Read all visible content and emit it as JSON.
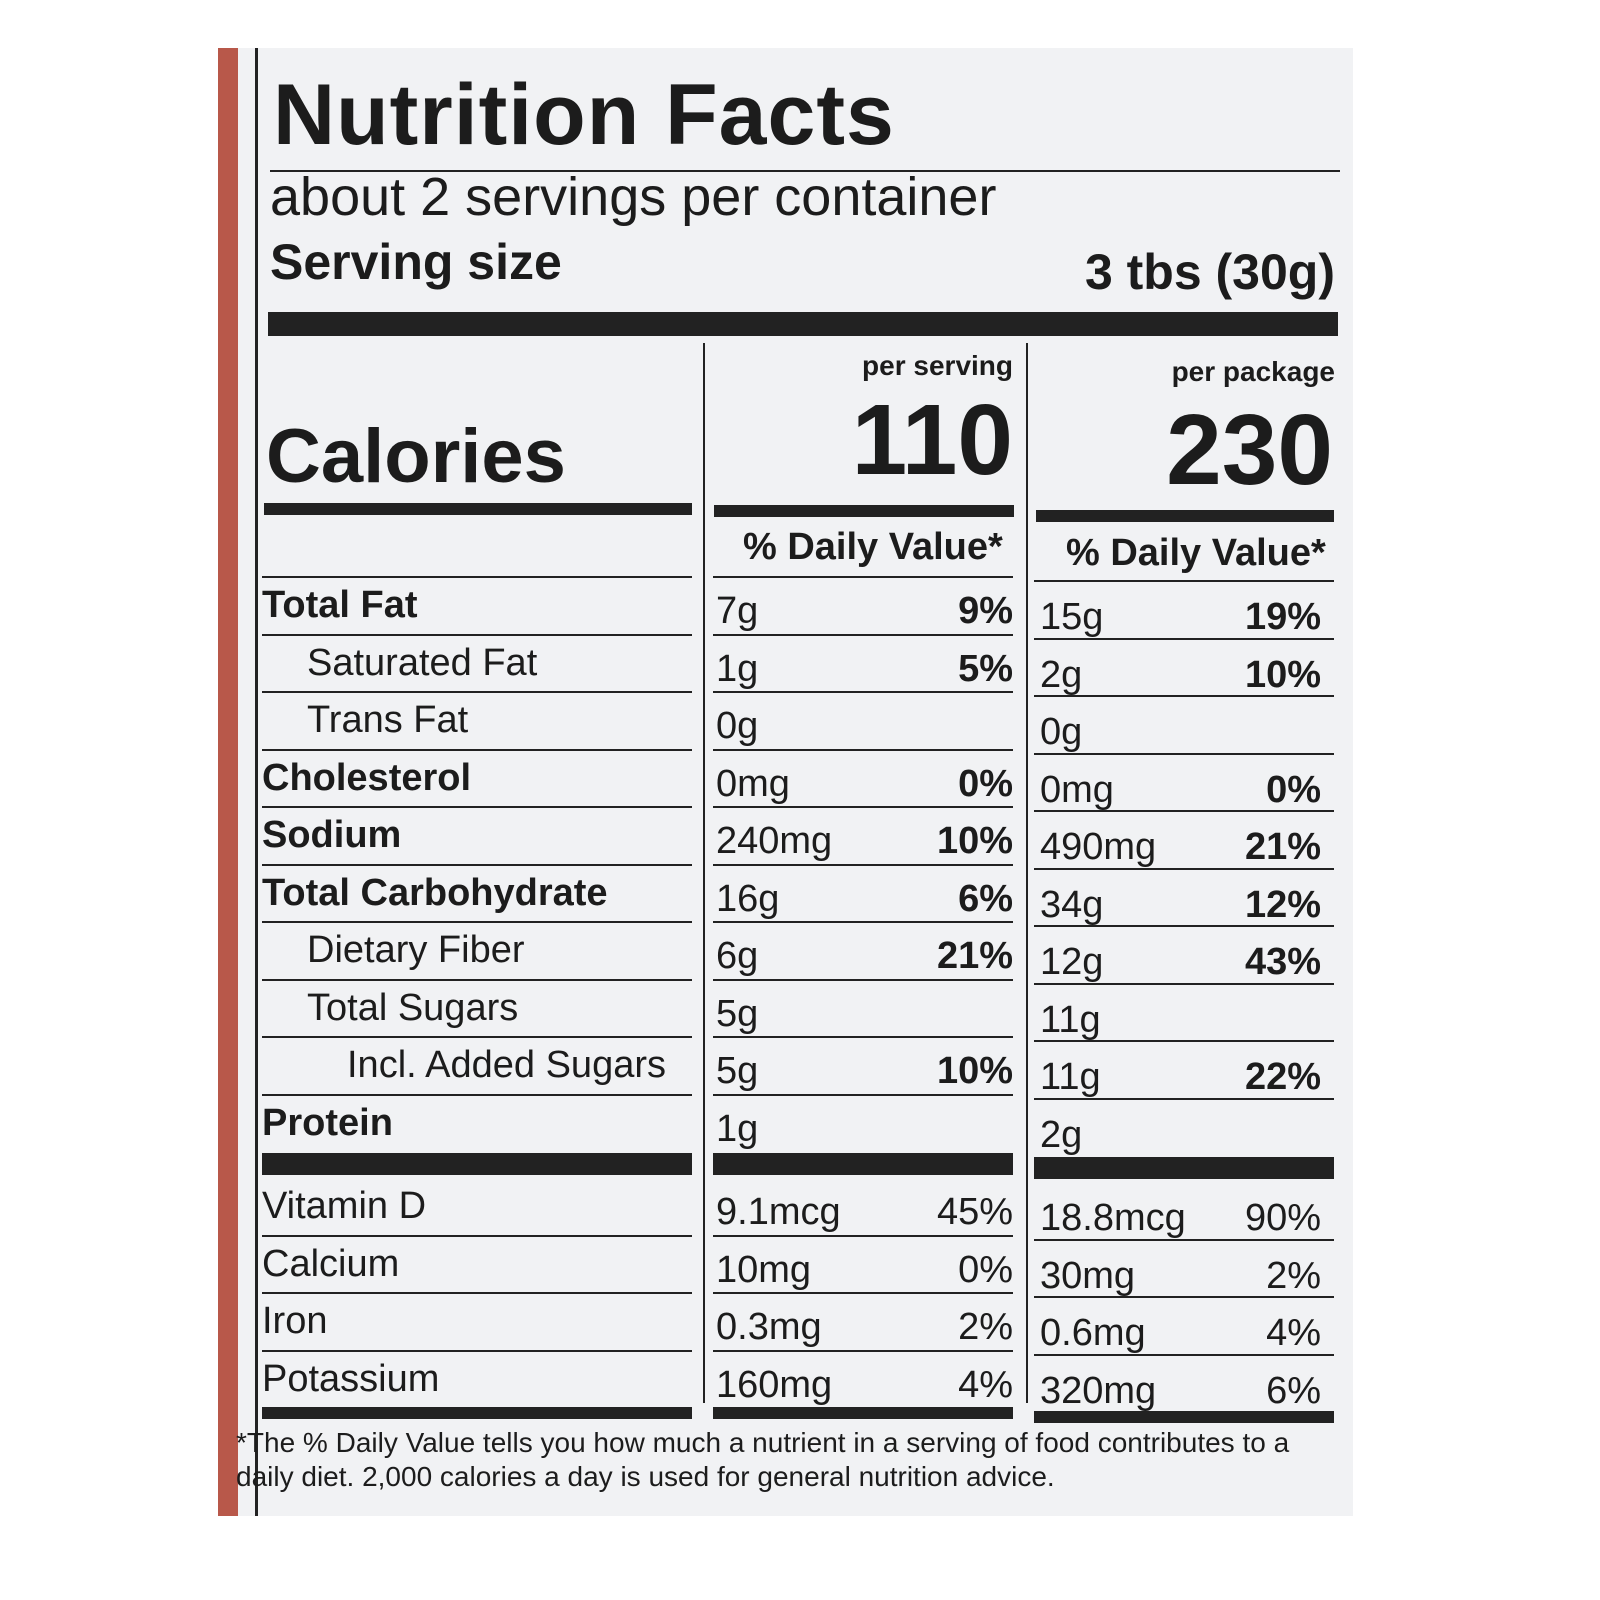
{
  "title": "Nutrition Facts",
  "servings_per_container": "about 2 servings per container",
  "serving_size_label": "Serving size",
  "serving_size_value": "3 tbs (30g)",
  "calories_label": "Calories",
  "per_serving": {
    "label": "per serving",
    "calories": "110",
    "dv_header": "% Daily Value*"
  },
  "per_package": {
    "label": "per package",
    "calories": "230",
    "dv_header": "% Daily Value*"
  },
  "nutrients": [
    {
      "name": "Total Fat",
      "bold": true,
      "indent": 0,
      "serving_amount": "7g",
      "serving_dv": "9%",
      "package_amount": "15g",
      "package_dv": "19%"
    },
    {
      "name": "Saturated Fat",
      "bold": false,
      "indent": 1,
      "serving_amount": "1g",
      "serving_dv": "5%",
      "package_amount": "2g",
      "package_dv": "10%"
    },
    {
      "name": "Trans Fat",
      "bold": false,
      "indent": 1,
      "serving_amount": "0g",
      "serving_dv": "",
      "package_amount": "0g",
      "package_dv": ""
    },
    {
      "name": "Cholesterol",
      "bold": true,
      "indent": 0,
      "serving_amount": "0mg",
      "serving_dv": "0%",
      "package_amount": "0mg",
      "package_dv": "0%"
    },
    {
      "name": "Sodium",
      "bold": true,
      "indent": 0,
      "serving_amount": "240mg",
      "serving_dv": "10%",
      "package_amount": "490mg",
      "package_dv": "21%"
    },
    {
      "name": "Total Carbohydrate",
      "bold": true,
      "indent": 0,
      "serving_amount": "16g",
      "serving_dv": "6%",
      "package_amount": "34g",
      "package_dv": "12%"
    },
    {
      "name": "Dietary Fiber",
      "bold": false,
      "indent": 1,
      "serving_amount": "6g",
      "serving_dv": "21%",
      "package_amount": "12g",
      "package_dv": "43%"
    },
    {
      "name": "Total Sugars",
      "bold": false,
      "indent": 1,
      "serving_amount": "5g",
      "serving_dv": "",
      "package_amount": "11g",
      "package_dv": ""
    },
    {
      "name": "Incl. Added Sugars",
      "bold": false,
      "indent": 2,
      "serving_amount": "5g",
      "serving_dv": "10%",
      "package_amount": "11g",
      "package_dv": "22%"
    },
    {
      "name": "Protein",
      "bold": true,
      "indent": 0,
      "serving_amount": "1g",
      "serving_dv": "",
      "package_amount": "2g",
      "package_dv": ""
    }
  ],
  "vitamins": [
    {
      "name": "Vitamin D",
      "serving_amount": "9.1mcg",
      "serving_dv": "45%",
      "package_amount": "18.8mcg",
      "package_dv": "90%"
    },
    {
      "name": "Calcium",
      "serving_amount": "10mg",
      "serving_dv": "0%",
      "package_amount": "30mg",
      "package_dv": "2%"
    },
    {
      "name": "Iron",
      "serving_amount": "0.3mg",
      "serving_dv": "2%",
      "package_amount": "0.6mg",
      "package_dv": "4%"
    },
    {
      "name": "Potassium",
      "serving_amount": "160mg",
      "serving_dv": "4%",
      "package_amount": "320mg",
      "package_dv": "6%"
    }
  ],
  "footnote": "*The % Daily Value tells you how much a nutrient in a serving of food contributes to a daily diet. 2,000 calories a day is used for general nutrition advice.",
  "colors": {
    "package_edge": "#b8584a",
    "ink": "#1c1c1c",
    "background": "#f1f2f4"
  }
}
